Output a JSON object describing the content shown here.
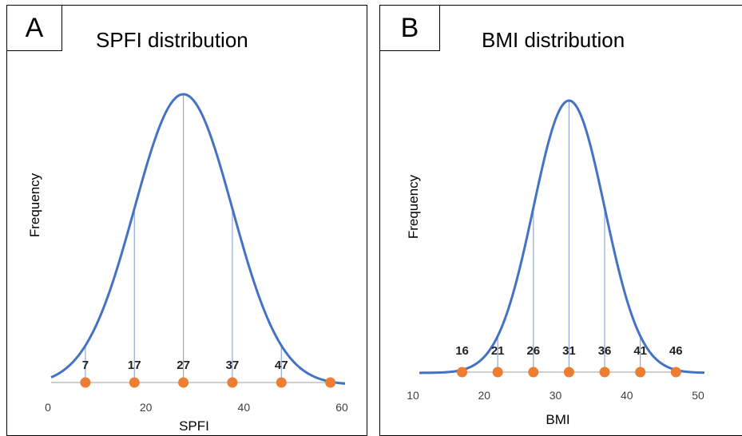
{
  "chart_data": [
    {
      "panel_label": "A",
      "type": "line",
      "title": "SPFI distribution",
      "xlabel": "SPFI",
      "ylabel": "Frequency",
      "xlim": [
        0,
        60
      ],
      "x_ticks": [
        0,
        20,
        40,
        60
      ],
      "curve": {
        "mean": 27,
        "sd": 10
      },
      "points": [
        7,
        17,
        27,
        37,
        47,
        57
      ],
      "point_labels": [
        "7",
        "17",
        "27",
        "37",
        "47",
        ""
      ],
      "colors": {
        "curve": "#4472C4",
        "points": "#ED7D31",
        "guides": "#8EA9DB",
        "axis": "#BFBFBF"
      }
    },
    {
      "panel_label": "B",
      "type": "line",
      "title": "BMI distribution",
      "xlabel": "BMI",
      "ylabel": "Frequency",
      "xlim": [
        10,
        50
      ],
      "x_ticks": [
        10,
        20,
        30,
        40,
        50
      ],
      "curve": {
        "mean": 31,
        "sd": 5
      },
      "points": [
        16,
        21,
        26,
        31,
        36,
        41,
        46
      ],
      "point_labels": [
        "16",
        "21",
        "26",
        "31",
        "36",
        "41",
        "46"
      ],
      "colors": {
        "curve": "#4472C4",
        "points": "#ED7D31",
        "guides": "#8EA9DB",
        "axis": "#BFBFBF"
      }
    }
  ]
}
